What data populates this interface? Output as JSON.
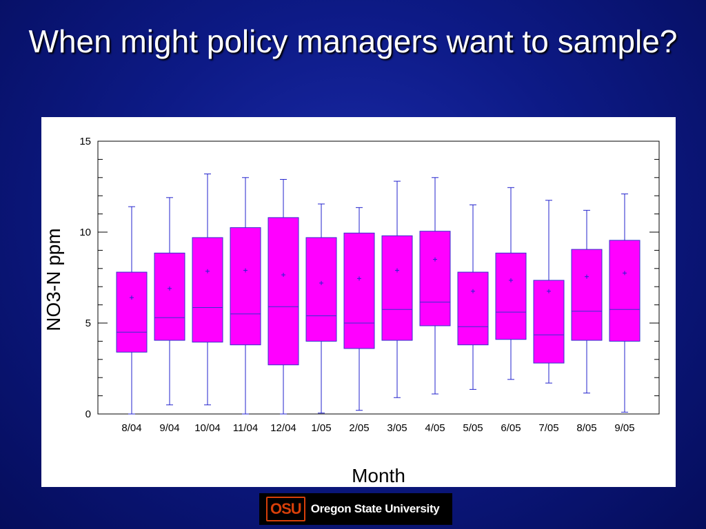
{
  "slide": {
    "title": "When might policy managers want to sample?"
  },
  "logo": {
    "mark": "OSU",
    "text": "Oregon State University",
    "brand_color": "#d73f09"
  },
  "colors": {
    "box_fill": "#ff00ff",
    "box_stroke": "#3333cc",
    "whisker": "#2222cc"
  },
  "chart_data": {
    "type": "box",
    "title": "",
    "xlabel": "Month",
    "ylabel": "NO3-N ppm",
    "ylim": [
      0,
      15
    ],
    "yticks": [
      0,
      5,
      10,
      15
    ],
    "grid": false,
    "categories": [
      "8/04",
      "9/04",
      "10/04",
      "11/04",
      "12/04",
      "1/05",
      "2/05",
      "3/05",
      "4/05",
      "5/05",
      "6/05",
      "7/05",
      "8/05",
      "9/05"
    ],
    "min": [
      0.0,
      0.5,
      0.5,
      0.0,
      0.0,
      0.05,
      0.2,
      0.9,
      1.1,
      1.35,
      1.9,
      1.7,
      1.15,
      0.1
    ],
    "q1": [
      3.4,
      4.05,
      3.95,
      3.8,
      2.7,
      4.0,
      3.6,
      4.05,
      4.85,
      3.8,
      4.1,
      2.8,
      4.05,
      4.0
    ],
    "median": [
      4.5,
      5.3,
      5.85,
      5.5,
      5.9,
      5.4,
      5.0,
      5.75,
      6.15,
      4.8,
      5.6,
      4.35,
      5.65,
      5.75
    ],
    "q3": [
      7.8,
      8.85,
      9.7,
      10.25,
      10.8,
      9.7,
      9.95,
      9.8,
      10.05,
      7.8,
      8.85,
      7.35,
      9.05,
      9.55
    ],
    "max": [
      11.4,
      11.9,
      13.2,
      13.0,
      12.9,
      11.55,
      11.35,
      12.8,
      13.0,
      11.5,
      12.45,
      11.75,
      11.2,
      12.1
    ],
    "mean": [
      6.4,
      6.9,
      7.85,
      7.9,
      7.65,
      7.2,
      7.45,
      7.9,
      8.5,
      6.75,
      7.35,
      6.75,
      7.55,
      7.75
    ]
  }
}
